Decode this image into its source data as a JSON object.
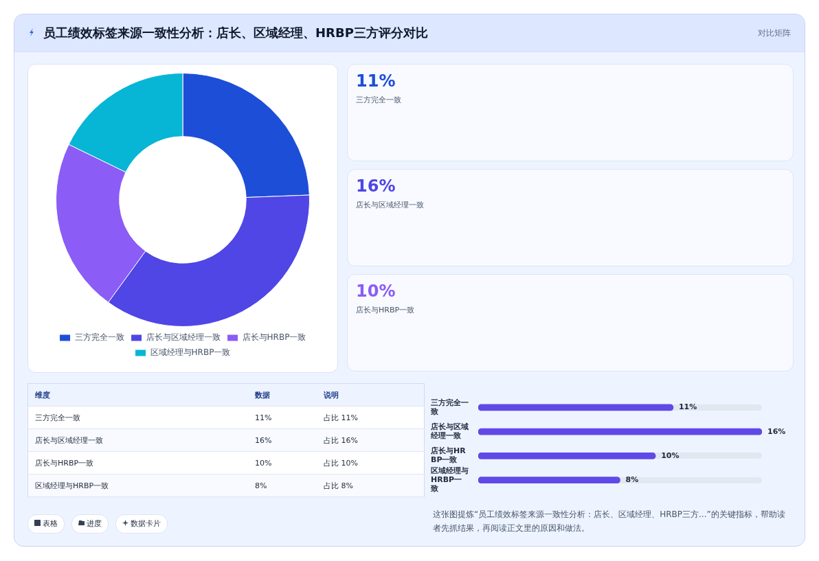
{
  "chart_data": [
    {
      "type": "donut",
      "title": "员工绩效标签来源一致性分析：店长、区域经理、HRBP三方评分对比",
      "categories": [
        "三方完全一致",
        "店长与区域经理一致",
        "店长与HRBP一致",
        "区域经理与HRBP一致"
      ],
      "values": [
        24.4,
        35.6,
        22.2,
        17.8
      ],
      "colors": [
        "#1d4ed8",
        "#4f46e5",
        "#8b5cf6",
        "#06b6d4"
      ],
      "legend": "bottom",
      "annotations": [
        "对比矩阵",
        "表格",
        "进度",
        "数据卡片",
        "这张图提炼“员工绩效标签来源一致性分析：店长、区域经理、HRBP三方...”的关键指标，帮助读者先抓结果，再阅读正文里的原因和做法。"
      ]
    },
    {
      "type": "other",
      "annotations": [
        "11%",
        "三方完全一致",
        "16%",
        "店长与区域经理一致",
        "10%",
        "店长与HRBP一致"
      ]
    },
    {
      "type": "other",
      "annotations": [
        "维度",
        "数据",
        "说明",
        "三方完全一致",
        "11%",
        "占比 11%",
        "店长与区域经理一致",
        "16%",
        "占比 16%",
        "店长与HRBP一致",
        "10%",
        "占比 10%",
        "区域经理与HRBP一致",
        "8%",
        "占比 8%"
      ]
    },
    {
      "type": "bar",
      "orientation": "horizontal",
      "categories": [
        "三方完全一致",
        "店长与区域经理一致",
        "店长与HRBP一致",
        "区域经理与HRBP一致"
      ],
      "values": [
        11,
        16,
        10,
        8
      ],
      "value_labels": [
        "11%",
        "16%",
        "10%",
        "8%"
      ],
      "color": "#6049e8",
      "tick_labels": "y"
    }
  ]
}
